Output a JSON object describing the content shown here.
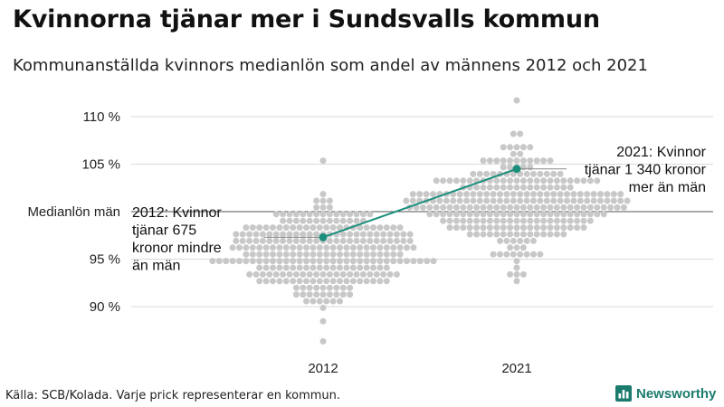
{
  "header": {
    "title": "Kvinnorna tjänar mer i Sundsvalls kommun",
    "subtitle": "Kommunanställda kvinnors medianlön som andel av männens 2012 och 2021"
  },
  "chart_data": {
    "type": "scatter",
    "x_categories": [
      "2012",
      "2021"
    ],
    "y_ticks": [
      90,
      95,
      100,
      105,
      110
    ],
    "y_tick_labels": [
      "90 %",
      "95 %",
      "Medianlön män",
      "105 %",
      "110 %"
    ],
    "ylim": [
      86,
      112
    ],
    "grid": true,
    "reference_line": {
      "value": 100,
      "label": "Medianlön män"
    },
    "highlight": {
      "series_color": "#1b8f7c",
      "points": [
        {
          "x": "2012",
          "y": 97.3
        },
        {
          "x": "2021",
          "y": 104.5
        }
      ]
    },
    "annotations": [
      {
        "x": "2012",
        "lines": [
          "2012: Kvinnor",
          "tjänar 675",
          "kronor mindre",
          "än män"
        ]
      },
      {
        "x": "2021",
        "lines": [
          "2021: Kvinnor",
          "tjänar 1 340 kronor",
          "mer än män"
        ]
      }
    ],
    "dot_color": "#c8c8c8",
    "distributions": [
      {
        "x": "2012",
        "median": 95.6,
        "sd": 2.6,
        "count": 290,
        "min": 86.6,
        "max": 105.4
      },
      {
        "x": "2021",
        "median": 101.0,
        "sd": 2.6,
        "count": 290,
        "min": 92.5,
        "max": 111.4
      }
    ]
  },
  "footer": {
    "source": "Källa: SCB/Kolada. Varje prick representerar en kommun.",
    "brand": "Newsworthy"
  }
}
